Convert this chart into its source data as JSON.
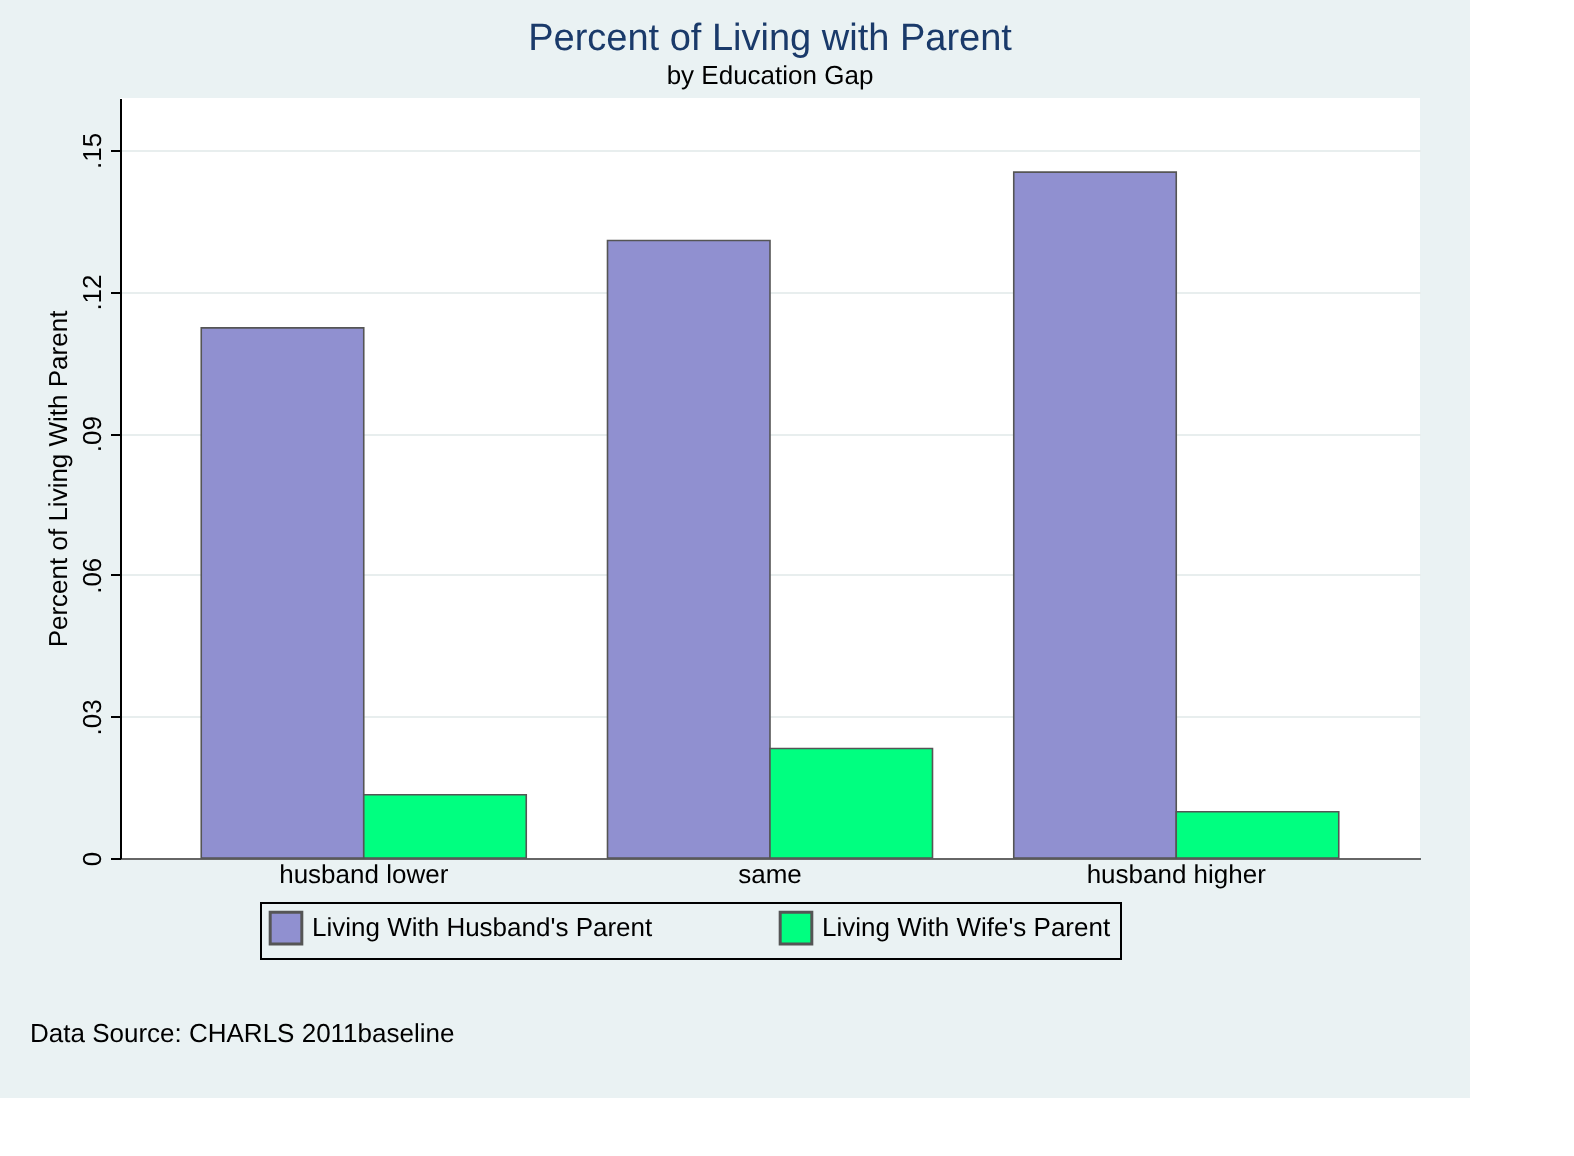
{
  "chart_data": {
    "type": "bar",
    "title": "Percent of Living with Parent",
    "subtitle": "by Education Gap",
    "ylabel": "Percent of Living With Parent",
    "categories": [
      "husband lower",
      "same",
      "husband higher"
    ],
    "series": [
      {
        "name": "Living With Husband's Parent",
        "color": "#9090d0",
        "values": [
          0.1123,
          0.1308,
          0.1453
        ]
      },
      {
        "name": "Living With Wife's Parent",
        "color": "#00ff80",
        "values": [
          0.0134,
          0.0232,
          0.0098
        ]
      }
    ],
    "ylim": [
      0,
      0.161
    ],
    "yticks": [
      0,
      {
        "value": 0.03,
        "label": ".03"
      },
      {
        "value": 0.06,
        "label": ".06"
      },
      {
        "value": 0.09,
        "label": ".09"
      },
      {
        "value": 0.12,
        "label": ".12"
      },
      {
        "value": 0.15,
        "label": ".15"
      }
    ],
    "grid": "y",
    "legend": "bottom",
    "annotations": [
      "Data Source: CHARLS 2011baseline"
    ]
  }
}
